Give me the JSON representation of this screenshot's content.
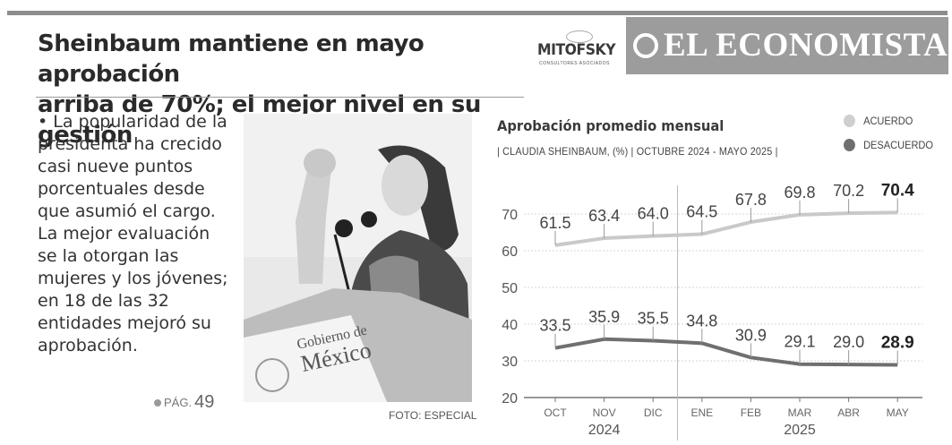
{
  "headline": {
    "line1": "Sheinbaum mantiene en mayo aprobación",
    "line2": "arriba de 70%; el mejor nivel en su gestión"
  },
  "logos": {
    "mitofsky": "MITOFSKY",
    "mitofsky_sub": "CONSULTORES ASOCIADOS",
    "economista": "EL ECONOMISTA"
  },
  "article": {
    "body": "• La popularidad de la presidenta ha crecido casi nueve puntos porcentuales desde que asumió el cargo. La mejor evaluación se la otorgan las mujeres y los jóvenes; en 18 de las 32 entidades mejoró su aprobación.",
    "page_ref_prefix": "PÁG.",
    "page_ref_number": "49"
  },
  "photo": {
    "podium_line1": "Gobierno de",
    "podium_line2": "México",
    "credit": "FOTO: ESPECIAL"
  },
  "chart_data": {
    "type": "line",
    "title": "Aprobación promedio mensual",
    "subtitle": "| CLAUDIA SHEINBAUM, (%) | OCTUBRE 2024 - MAYO 2025 |",
    "categories": [
      "OCT",
      "NOV",
      "DIC",
      "ENE",
      "FEB",
      "MAR",
      "ABR",
      "MAY"
    ],
    "year_labels": [
      "2024",
      "2025"
    ],
    "series": [
      {
        "name": "ACUERDO",
        "values": [
          61.5,
          63.4,
          64.0,
          64.5,
          67.8,
          69.8,
          70.2,
          70.4
        ],
        "color": "#c9c9c9"
      },
      {
        "name": "DESACUERDO",
        "values": [
          33.5,
          35.9,
          35.5,
          34.8,
          30.9,
          29.1,
          29.0,
          28.9
        ],
        "color": "#6f6f6f"
      }
    ],
    "value_labels": [
      [
        "61.5",
        "63.4",
        "64.0",
        "64.5",
        "67.8",
        "69.8",
        "70.2",
        "70.4"
      ],
      [
        "33.5",
        "35.9",
        "35.5",
        "34.8",
        "30.9",
        "29.1",
        "29.0",
        "28.9"
      ]
    ],
    "yticks": [
      "20",
      "30",
      "40",
      "50",
      "60",
      "70"
    ],
    "ylim": [
      20,
      75
    ],
    "grid": true,
    "legend_position": "top-right"
  }
}
